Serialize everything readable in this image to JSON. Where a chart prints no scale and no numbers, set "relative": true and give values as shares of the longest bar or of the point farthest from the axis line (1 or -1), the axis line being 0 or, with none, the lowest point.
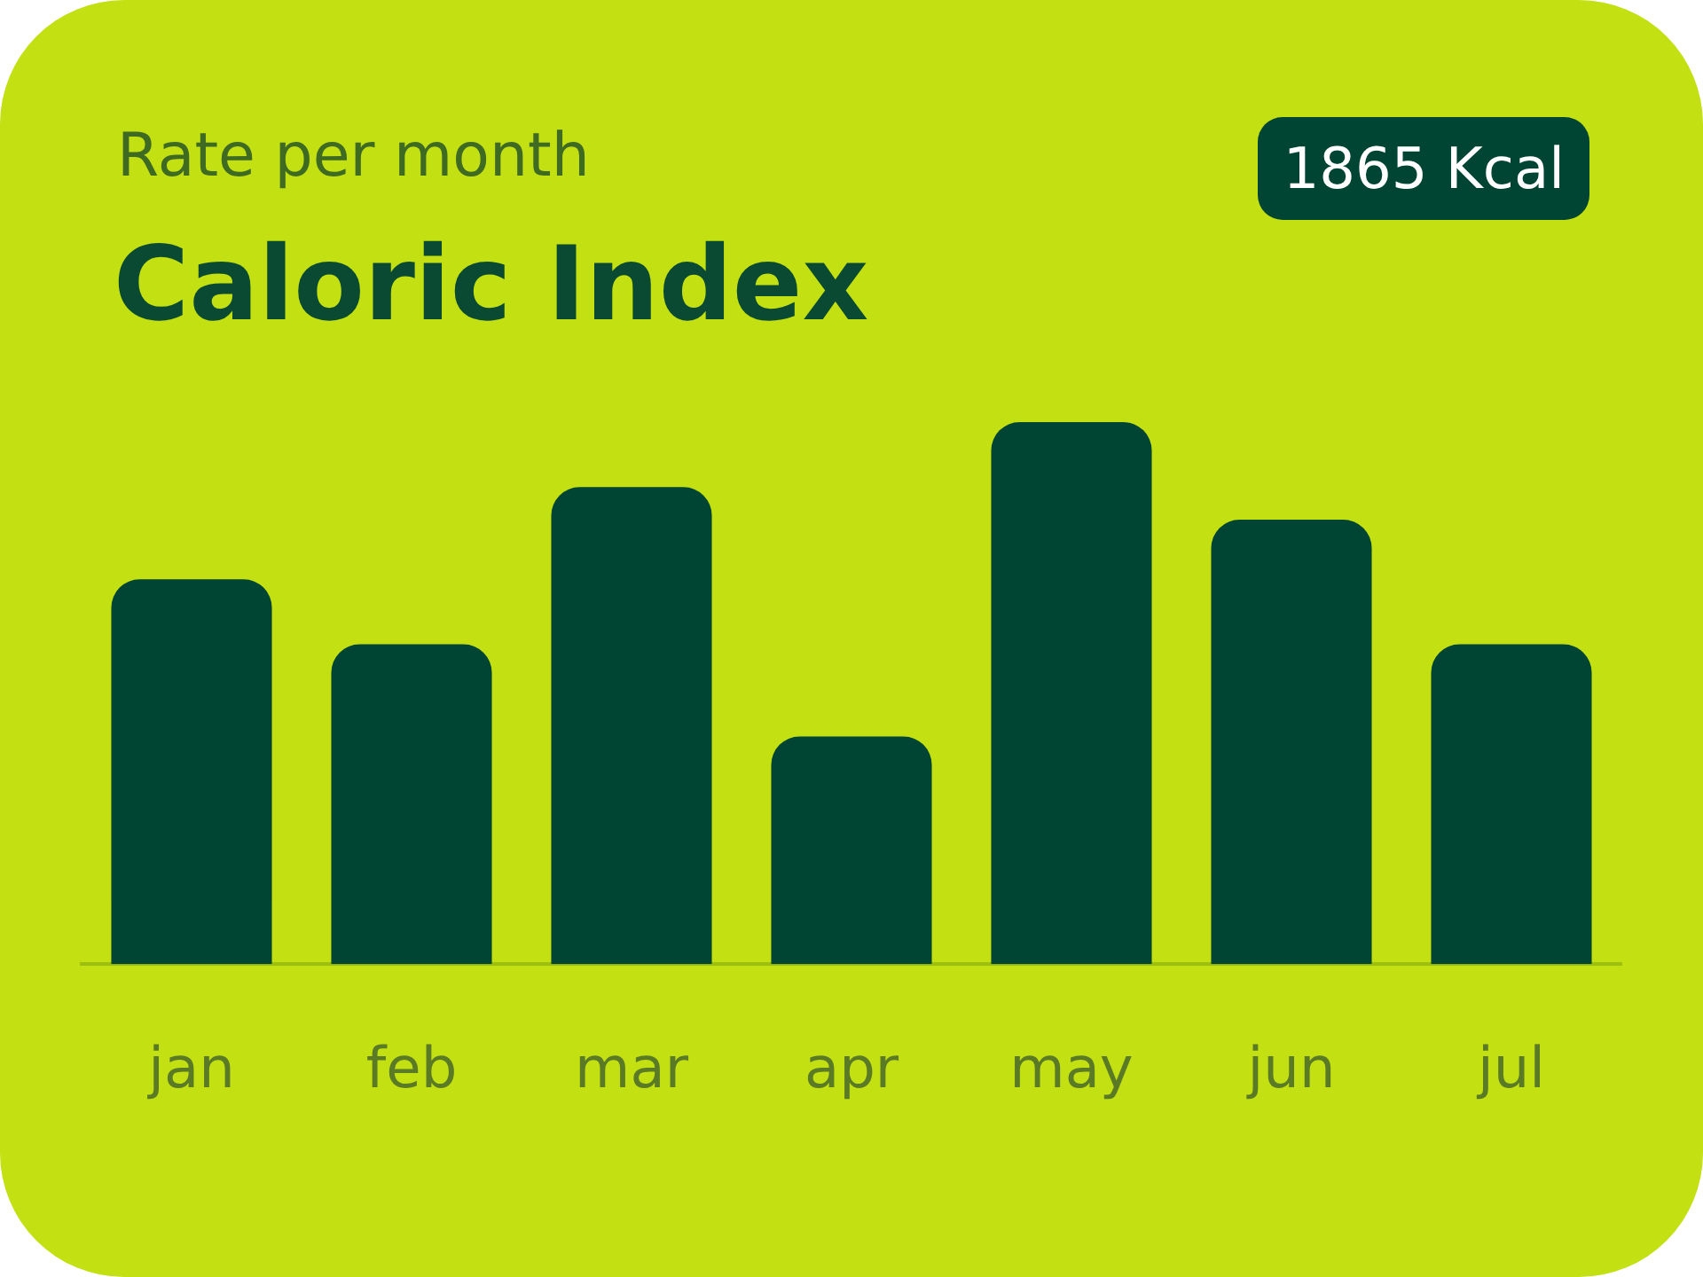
{
  "chart_data": {
    "type": "bar",
    "title": "Caloric Index",
    "subtitle": "Rate per month",
    "annotations": [
      "1865 Kcal"
    ],
    "categories": [
      "jan",
      "feb",
      "mar",
      "apr",
      "may",
      "jun",
      "jul"
    ],
    "values": [
      0.71,
      0.59,
      0.88,
      0.42,
      1,
      0.82,
      0.59
    ],
    "color": "#004433",
    "relative": true,
    "grid": false,
    "legend": false
  }
}
